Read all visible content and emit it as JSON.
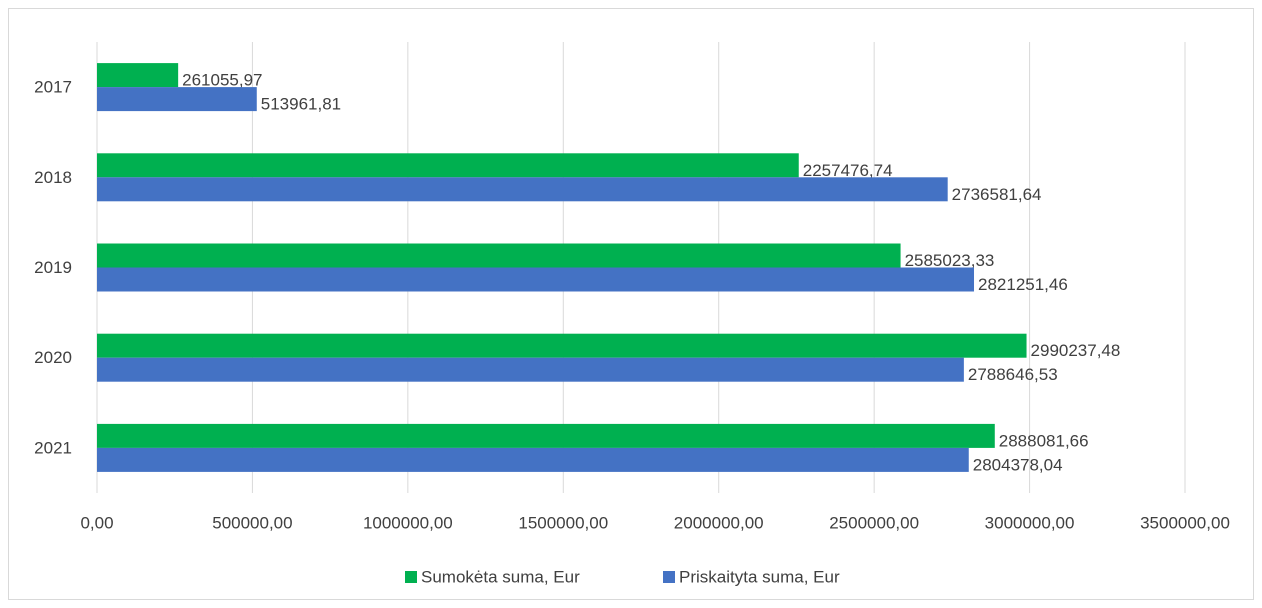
{
  "chart_data": {
    "type": "hbar",
    "categories": [
      "2017",
      "2018",
      "2019",
      "2020",
      "2021"
    ],
    "series": [
      {
        "name": "Sumokėta suma, Eur",
        "color": "#00b050",
        "values": [
          261055.97,
          2257476.74,
          2585023.33,
          2990237.48,
          2888081.66
        ],
        "value_labels": [
          "261055,97",
          "2257476,74",
          "2585023,33",
          "2990237,48",
          "2888081,66"
        ]
      },
      {
        "name": "Priskaityta suma, Eur",
        "color": "#4472c4",
        "values": [
          513961.81,
          2736581.64,
          2821251.46,
          2788646.53,
          2804378.04
        ],
        "value_labels": [
          "513961,81",
          "2736581,64",
          "2821251,46",
          "2788646,53",
          "2804378,04"
        ]
      }
    ],
    "xlim": [
      0,
      3500000
    ],
    "xticks": [
      {
        "value": 0,
        "label": "0,00"
      },
      {
        "value": 500000,
        "label": "500000,00"
      },
      {
        "value": 1000000,
        "label": "1000000,00"
      },
      {
        "value": 1500000,
        "label": "1500000,00"
      },
      {
        "value": 2000000,
        "label": "2000000,00"
      },
      {
        "value": 2500000,
        "label": "2500000,00"
      },
      {
        "value": 3000000,
        "label": "3000000,00"
      },
      {
        "value": 3500000,
        "label": "3500000,00"
      }
    ],
    "grid": true,
    "legend": "bottom"
  }
}
